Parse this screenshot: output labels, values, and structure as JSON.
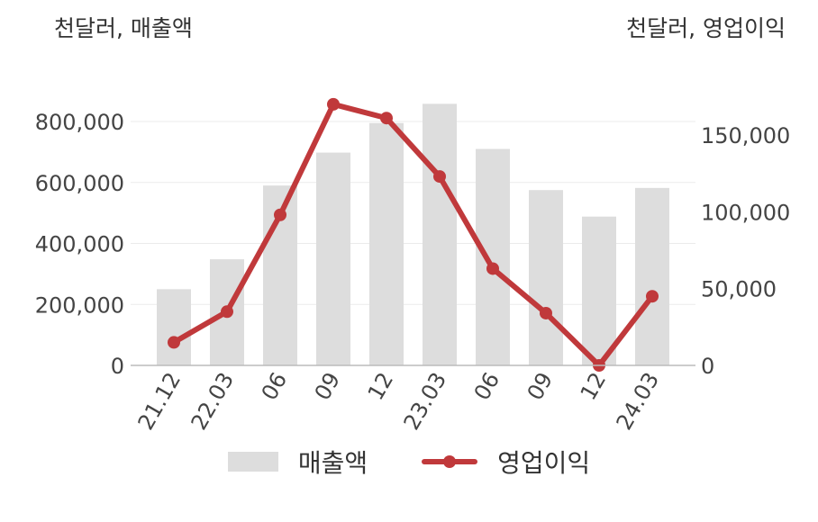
{
  "chart_data": {
    "type": "bar+line",
    "left_axis_unit": "천달러, 매출액",
    "right_axis_unit": "천달러, 영업이익",
    "categories": [
      "21.12",
      "22.03",
      "06",
      "09",
      "12",
      "23.03",
      "06",
      "09",
      "12",
      "24.03"
    ],
    "series": [
      {
        "name": "매출액",
        "type": "bar",
        "axis": "left",
        "color": "#dddddd",
        "values": [
          250000,
          348000,
          590000,
          698000,
          795000,
          858000,
          710000,
          575000,
          488000,
          582000
        ]
      },
      {
        "name": "영업이익",
        "type": "line",
        "axis": "right",
        "color": "#c0393b",
        "values": [
          15000,
          35000,
          98000,
          170000,
          161000,
          123000,
          63000,
          34000,
          0,
          45000
        ]
      }
    ],
    "left_axis": {
      "min": 0,
      "max": 800000,
      "ticks": [
        0,
        200000,
        400000,
        600000,
        800000
      ],
      "tick_labels": [
        "0",
        "200,000",
        "400,000",
        "600,000",
        "800,000"
      ]
    },
    "right_axis": {
      "min": 0,
      "max": 150000,
      "ticks": [
        0,
        50000,
        100000,
        150000
      ],
      "tick_labels": [
        "0",
        "50,000",
        "100,000",
        "150,000"
      ]
    },
    "grid": true,
    "legend_position": "bottom-center"
  }
}
